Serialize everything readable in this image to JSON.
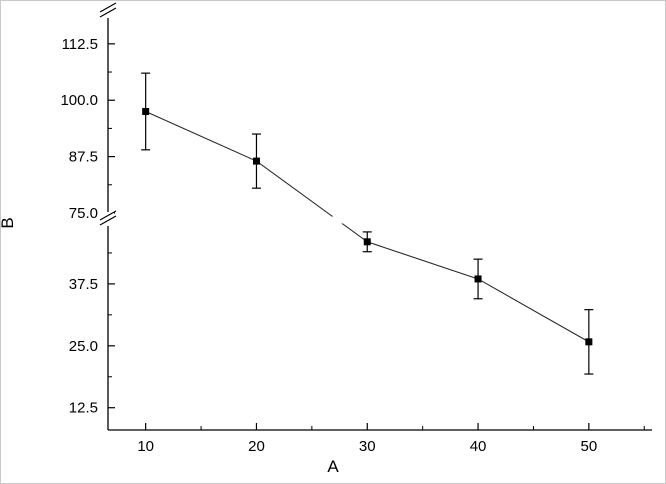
{
  "figure": {
    "background": "#ffffff",
    "border_color": "#c9c9c9"
  },
  "chart_data": {
    "type": "line",
    "title": "",
    "xlabel": "A",
    "ylabel": "B",
    "x": [
      10,
      20,
      30,
      40,
      50
    ],
    "series": [
      {
        "name": "B",
        "y": [
          97.5,
          86.5,
          46.0,
          38.5,
          25.8
        ],
        "yerr": [
          8.5,
          6.0,
          2.0,
          4.0,
          6.5
        ]
      }
    ],
    "marker": "filled-square",
    "marker_color": "#000000",
    "line_color": "#2a2a2a",
    "axis_color": "#000000",
    "x_ticks": {
      "major": [
        10,
        20,
        30,
        40,
        50
      ],
      "labels": [
        "10",
        "20",
        "30",
        "40",
        "50"
      ],
      "minor": [
        15,
        25,
        35,
        45,
        55
      ]
    },
    "y_ticks": {
      "major": [
        12.5,
        25.0,
        37.5,
        75.0,
        87.5,
        100.0,
        112.5
      ],
      "labels": [
        "12.5",
        "25.0",
        "37.5",
        "75.0",
        "87.5",
        "100.0",
        "112.5"
      ],
      "minor": [
        18.75,
        31.25,
        43.75,
        81.25,
        93.75,
        106.25
      ]
    },
    "y_axis_break": {
      "below": 50,
      "above": 73
    },
    "x_range": [
      6.6,
      55.7
    ],
    "y_lower_range": [
      8,
      50
    ],
    "y_upper_range": [
      73,
      120
    ],
    "grid": "off",
    "legend": "none"
  }
}
